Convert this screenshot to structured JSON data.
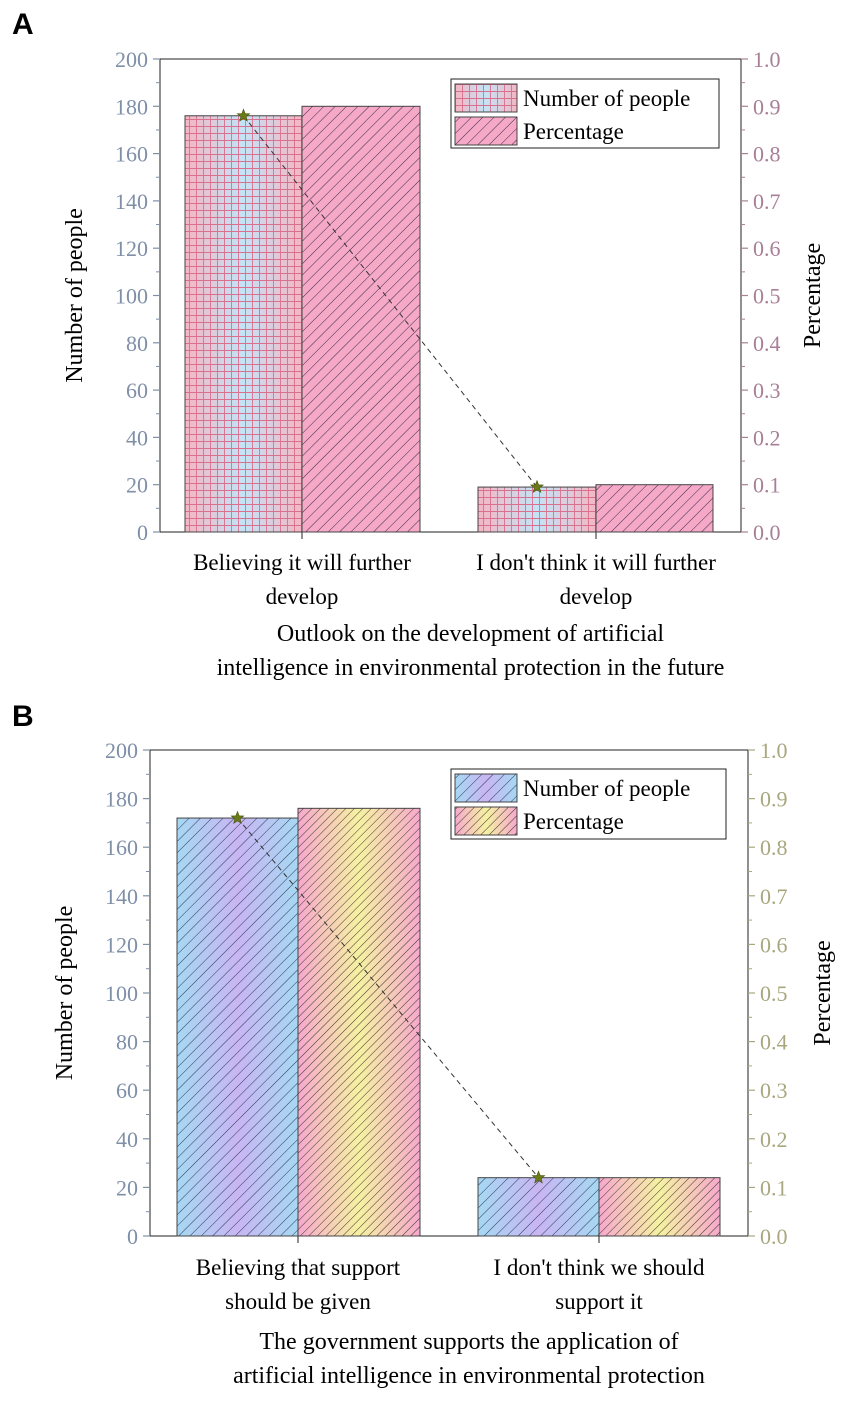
{
  "chart_data": [
    {
      "panel": "A",
      "type": "bar",
      "categories": [
        "Believing it will further develop",
        "I don't think it will further develop"
      ],
      "category_lines": [
        [
          "Believing it will further",
          "develop"
        ],
        [
          "I don't think it will further",
          "develop"
        ]
      ],
      "series": [
        {
          "name": "Number of people",
          "axis": "left",
          "values": [
            176,
            19
          ],
          "style": "grid"
        },
        {
          "name": "Percentage",
          "axis": "right",
          "values": [
            0.9,
            0.1
          ],
          "style": "hatch"
        }
      ],
      "trend_line": {
        "axis": "left",
        "values": [
          176,
          19
        ],
        "marker": "star"
      },
      "xlabel": [
        "Outlook on the development of artificial",
        "intelligence in environmental protection in the future"
      ],
      "ylabel_left": "Number of people",
      "ylabel_right": "Percentage",
      "ylim_left": [
        0,
        200
      ],
      "yticks_left": [
        0,
        20,
        40,
        60,
        80,
        100,
        120,
        140,
        160,
        180,
        200
      ],
      "ylim_right": [
        0,
        1.0
      ],
      "yticks_right": [
        "0.0",
        "0.1",
        "0.2",
        "0.3",
        "0.4",
        "0.5",
        "0.6",
        "0.7",
        "0.8",
        "0.9",
        "1.0"
      ],
      "legend_position": "top-right",
      "colors": {
        "left_axis": "#7f8fa8",
        "right_axis": "#a87f96",
        "bar1_fill_a": "#f2b3c3",
        "bar1_fill_b": "#bfe3f5",
        "bar1_pattern": "#d76c8a",
        "bar2_fill": "#f5a9c8",
        "bar2_pattern": "#3a2a4a",
        "marker": "#6b7a18"
      }
    },
    {
      "panel": "B",
      "type": "bar",
      "categories": [
        "Believing that support should be given",
        "I don't think we should support it"
      ],
      "category_lines": [
        [
          "Believing that support",
          "should be given"
        ],
        [
          "I don't think we should",
          "support it"
        ]
      ],
      "series": [
        {
          "name": "Number of people",
          "axis": "left",
          "values": [
            172,
            24
          ],
          "style": "hatch"
        },
        {
          "name": "Percentage",
          "axis": "right",
          "values": [
            0.88,
            0.12
          ],
          "style": "hatch"
        }
      ],
      "trend_line": {
        "axis": "left",
        "values": [
          172,
          24
        ],
        "marker": "star"
      },
      "xlabel": [
        "The government supports the application of",
        "artificial intelligence in environmental protection"
      ],
      "ylabel_left": "Number of people",
      "ylabel_right": "Percentage",
      "ylim_left": [
        0,
        200
      ],
      "yticks_left": [
        0,
        20,
        40,
        60,
        80,
        100,
        120,
        140,
        160,
        180,
        200
      ],
      "ylim_right": [
        0,
        1.0
      ],
      "yticks_right": [
        "0.0",
        "0.1",
        "0.2",
        "0.3",
        "0.4",
        "0.5",
        "0.6",
        "0.7",
        "0.8",
        "0.9",
        "1.0"
      ],
      "legend_position": "top-right",
      "colors": {
        "left_axis": "#7f8fa8",
        "right_axis": "#a8a77f",
        "bar1_fill_a": "#a9d6f2",
        "bar1_fill_b": "#c6b3f2",
        "bar1_pattern": "#2b3b5a",
        "bar2_fill_a": "#f5a9cc",
        "bar2_fill_b": "#f5f0a0",
        "bar2_pattern": "#3a3a2a",
        "marker": "#6b7a18"
      }
    }
  ]
}
